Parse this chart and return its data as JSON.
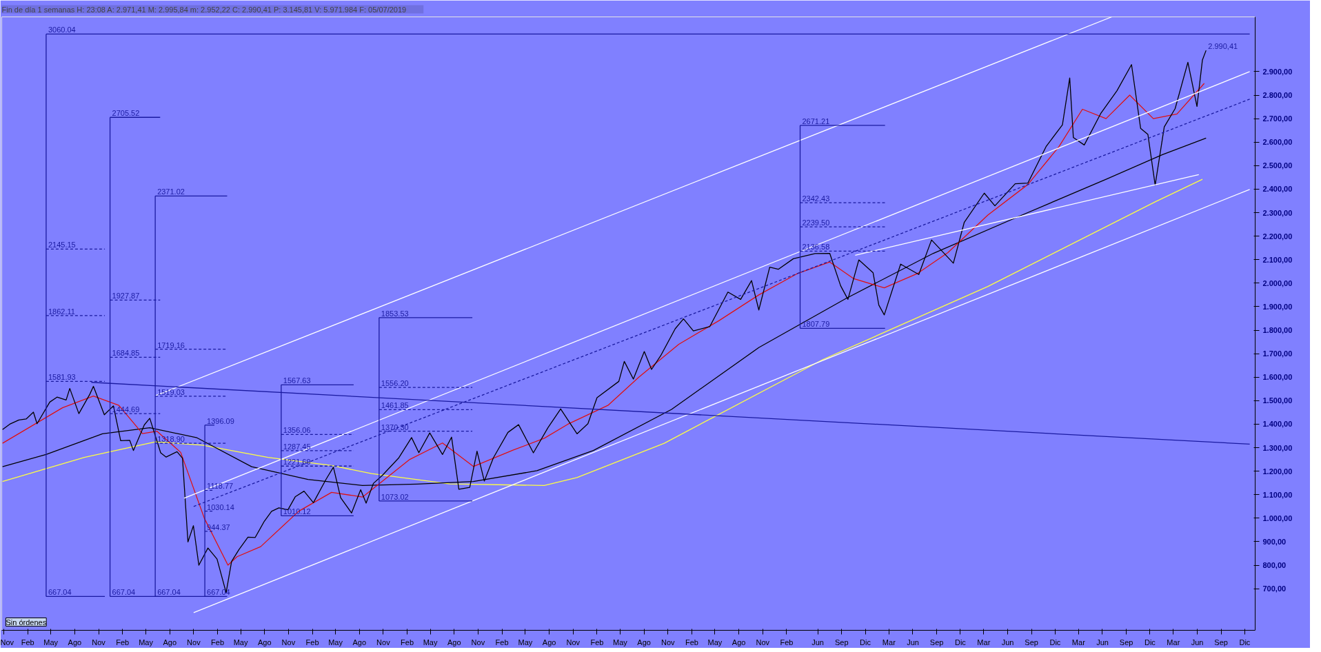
{
  "chart_data": {
    "type": "line",
    "title": "Fin de día 1 semanas  H: 23:08  A: 2.971,41  M: 2.995,84  m: 2.952,22  C: 2.990,41  P: 3.145,81  V: 5.971.984  F: 05/07/2019",
    "xlim": [
      "2006-10-24",
      "2020-01-10"
    ],
    "ylim": [
      523,
      3133
    ],
    "xticks": [
      {
        "value": "2006-11-01",
        "label": "Nov"
      },
      {
        "value": "2007-02-01",
        "label": "Feb"
      },
      {
        "value": "2007-05-01",
        "label": "May"
      },
      {
        "value": "2007-08-01",
        "label": "Ago"
      },
      {
        "value": "2007-11-01",
        "label": "Nov"
      },
      {
        "value": "2008-02-01",
        "label": "Feb"
      },
      {
        "value": "2008-05-01",
        "label": "May"
      },
      {
        "value": "2008-08-01",
        "label": "Ago"
      },
      {
        "value": "2008-11-01",
        "label": "Nov"
      },
      {
        "value": "2009-02-01",
        "label": "Feb"
      },
      {
        "value": "2009-05-01",
        "label": "May"
      },
      {
        "value": "2009-08-01",
        "label": "Ago"
      },
      {
        "value": "2009-11-01",
        "label": "Nov"
      },
      {
        "value": "2010-02-01",
        "label": "Feb"
      },
      {
        "value": "2010-05-01",
        "label": "May"
      },
      {
        "value": "2010-08-01",
        "label": "Ago"
      },
      {
        "value": "2010-11-01",
        "label": "Nov"
      },
      {
        "value": "2011-02-01",
        "label": "Feb"
      },
      {
        "value": "2011-05-01",
        "label": "May"
      },
      {
        "value": "2011-08-01",
        "label": "Ago"
      },
      {
        "value": "2011-11-01",
        "label": "Nov"
      },
      {
        "value": "2012-02-01",
        "label": "Feb"
      },
      {
        "value": "2012-05-01",
        "label": "May"
      },
      {
        "value": "2012-08-01",
        "label": "Ago"
      },
      {
        "value": "2012-11-01",
        "label": "Nov"
      },
      {
        "value": "2013-02-01",
        "label": "Feb"
      },
      {
        "value": "2013-05-01",
        "label": "May"
      },
      {
        "value": "2013-08-01",
        "label": "Ago"
      },
      {
        "value": "2013-11-01",
        "label": "Nov"
      },
      {
        "value": "2014-02-01",
        "label": "Feb"
      },
      {
        "value": "2014-05-01",
        "label": "May"
      },
      {
        "value": "2014-08-01",
        "label": "Ago"
      },
      {
        "value": "2014-11-01",
        "label": "Nov"
      },
      {
        "value": "2015-02-01",
        "label": "Feb"
      },
      {
        "value": "2015-06-01",
        "label": "Jun"
      },
      {
        "value": "2015-09-01",
        "label": "Sep"
      },
      {
        "value": "2015-12-01",
        "label": "Dic"
      },
      {
        "value": "2016-03-01",
        "label": "Mar"
      },
      {
        "value": "2016-06-01",
        "label": "Jun"
      },
      {
        "value": "2016-09-01",
        "label": "Sep"
      },
      {
        "value": "2016-12-01",
        "label": "Dic"
      },
      {
        "value": "2017-03-01",
        "label": "Mar"
      },
      {
        "value": "2017-06-01",
        "label": "Jun"
      },
      {
        "value": "2017-09-01",
        "label": "Sep"
      },
      {
        "value": "2017-12-01",
        "label": "Dic"
      },
      {
        "value": "2018-03-01",
        "label": "Mar"
      },
      {
        "value": "2018-06-01",
        "label": "Jun"
      },
      {
        "value": "2018-09-01",
        "label": "Sep"
      },
      {
        "value": "2018-12-01",
        "label": "Dic"
      },
      {
        "value": "2019-03-01",
        "label": "Mar"
      },
      {
        "value": "2019-06-01",
        "label": "Jun"
      },
      {
        "value": "2019-09-01",
        "label": "Sep"
      },
      {
        "value": "2019-12-01",
        "label": "Dic"
      }
    ],
    "yticks": [
      {
        "value": 700,
        "label": "700,00"
      },
      {
        "value": 800,
        "label": "800,00"
      },
      {
        "value": 900,
        "label": "900,00"
      },
      {
        "value": 1000,
        "label": "1.000,00"
      },
      {
        "value": 1100,
        "label": "1.100,00"
      },
      {
        "value": 1200,
        "label": "1.200,00"
      },
      {
        "value": 1300,
        "label": "1.300,00"
      },
      {
        "value": 1400,
        "label": "1.400,00"
      },
      {
        "value": 1500,
        "label": "1.500,00"
      },
      {
        "value": 1600,
        "label": "1.600,00"
      },
      {
        "value": 1700,
        "label": "1.700,00"
      },
      {
        "value": 1800,
        "label": "1.800,00"
      },
      {
        "value": 1900,
        "label": "1.900,00"
      },
      {
        "value": 2000,
        "label": "2.000,00"
      },
      {
        "value": 2100,
        "label": "2.100,00"
      },
      {
        "value": 2200,
        "label": "2.200,00"
      },
      {
        "value": 2300,
        "label": "2.300,00"
      },
      {
        "value": 2400,
        "label": "2.400,00"
      },
      {
        "value": 2500,
        "label": "2.500,00"
      },
      {
        "value": 2600,
        "label": "2.600,00"
      },
      {
        "value": 2700,
        "label": "2.700,00"
      },
      {
        "value": 2800,
        "label": "2.800,00"
      },
      {
        "value": 2900,
        "label": "2.900,00"
      }
    ],
    "grid": false,
    "marker": "none",
    "series": [
      {
        "color": "#ffff40",
        "x": [
          "2006-10-27",
          "2007-09-07",
          "2008-06-06",
          "2008-12-05",
          "2009-08-14",
          "2010-04-16",
          "2010-09-17",
          "2011-07-15",
          "2012-07-13",
          "2012-11-16",
          "2013-10-18",
          "2015-06-19",
          "2017-03-17",
          "2018-12-21",
          "2019-06-21"
        ],
        "values": [
          1156,
          1259,
          1325,
          1311,
          1259,
          1224,
          1190,
          1146,
          1139,
          1173,
          1319,
          1674,
          1986,
          2346,
          2442
        ]
      },
      {
        "color": "#000000",
        "x": [
          "2006-10-27",
          "2007-04-13",
          "2007-11-16",
          "2008-05-16",
          "2008-11-14",
          "2009-06-12",
          "2010-01-15",
          "2010-08-13",
          "2011-03-11",
          "2011-10-14",
          "2012-06-15",
          "2013-01-18",
          "2013-11-15",
          "2014-10-17",
          "2015-09-18",
          "2016-08-19",
          "2017-07-14",
          "2018-06-15",
          "2019-01-18",
          "2019-07-05"
        ],
        "values": [
          1219,
          1271,
          1359,
          1385,
          1342,
          1219,
          1165,
          1139,
          1145,
          1156,
          1202,
          1288,
          1463,
          1726,
          1935,
          2127,
          2284,
          2442,
          2547,
          2617
        ]
      },
      {
        "color": "#e01010",
        "x": [
          "2006-10-27",
          "2007-06-15",
          "2007-10-12",
          "2008-01-18",
          "2008-04-18",
          "2008-06-13",
          "2008-09-12",
          "2008-12-12",
          "2009-03-13",
          "2009-04-17",
          "2009-07-17",
          "2009-12-11",
          "2010-04-16",
          "2010-08-13",
          "2011-02-11",
          "2011-06-17",
          "2011-10-14",
          "2012-03-16",
          "2012-07-13",
          "2012-10-12",
          "2013-03-15",
          "2013-07-12",
          "2013-12-13",
          "2014-05-16",
          "2014-10-17",
          "2015-03-13",
          "2015-07-17",
          "2015-10-16",
          "2016-02-12",
          "2016-06-17",
          "2016-10-14",
          "2017-03-17",
          "2017-08-18",
          "2017-12-15",
          "2018-03-16",
          "2018-06-15",
          "2018-09-14",
          "2018-12-14",
          "2019-03-15",
          "2019-06-28"
        ],
        "values": [
          1319,
          1470,
          1520,
          1480,
          1360,
          1370,
          1280,
          1000,
          800,
          836,
          879,
          1030,
          1110,
          1090,
          1250,
          1320,
          1220,
          1290,
          1340,
          1400,
          1480,
          1600,
          1740,
          1840,
          1950,
          2040,
          2090,
          2020,
          1980,
          2040,
          2130,
          2290,
          2420,
          2580,
          2740,
          2700,
          2800,
          2700,
          2720,
          2850
        ]
      },
      {
        "color": "#000000",
        "x": [
          "2006-10-27",
          "2006-11-24",
          "2006-12-29",
          "2007-01-26",
          "2007-02-23",
          "2007-03-09",
          "2007-04-27",
          "2007-05-25",
          "2007-06-29",
          "2007-07-13",
          "2007-08-17",
          "2007-09-28",
          "2007-10-12",
          "2007-11-23",
          "2007-12-28",
          "2008-01-25",
          "2008-02-29",
          "2008-03-14",
          "2008-04-25",
          "2008-05-16",
          "2008-06-27",
          "2008-07-18",
          "2008-08-29",
          "2008-09-19",
          "2008-10-10",
          "2008-10-31",
          "2008-11-21",
          "2008-12-26",
          "2009-01-30",
          "2009-03-06",
          "2009-03-27",
          "2009-04-24",
          "2009-05-29",
          "2009-06-26",
          "2009-07-31",
          "2009-08-28",
          "2009-09-25",
          "2009-10-30",
          "2009-11-27",
          "2009-12-31",
          "2010-02-05",
          "2010-03-26",
          "2010-04-23",
          "2010-05-21",
          "2010-07-02",
          "2010-08-06",
          "2010-08-27",
          "2010-09-24",
          "2010-10-29",
          "2010-12-31",
          "2011-02-18",
          "2011-03-18",
          "2011-04-29",
          "2011-06-17",
          "2011-07-22",
          "2011-08-19",
          "2011-09-30",
          "2011-10-28",
          "2011-11-25",
          "2011-12-30",
          "2012-02-24",
          "2012-04-05",
          "2012-06-01",
          "2012-07-27",
          "2012-09-14",
          "2012-11-16",
          "2012-12-28",
          "2013-02-01",
          "2013-04-26",
          "2013-05-17",
          "2013-06-21",
          "2013-08-02",
          "2013-08-30",
          "2013-10-04",
          "2013-11-29",
          "2013-12-31",
          "2014-02-07",
          "2014-04-11",
          "2014-06-20",
          "2014-08-08",
          "2014-09-19",
          "2014-10-17",
          "2014-11-28",
          "2014-12-31",
          "2015-02-27",
          "2015-05-22",
          "2015-07-17",
          "2015-08-28",
          "2015-09-25",
          "2015-11-06",
          "2015-12-31",
          "2016-01-22",
          "2016-02-12",
          "2016-04-15",
          "2016-06-24",
          "2016-08-12",
          "2016-11-04",
          "2016-12-16",
          "2017-03-03",
          "2017-04-13",
          "2017-06-30",
          "2017-08-18",
          "2017-10-27",
          "2017-12-29",
          "2018-01-26",
          "2018-02-09",
          "2018-03-23",
          "2018-05-25",
          "2018-07-27",
          "2018-09-21",
          "2018-10-26",
          "2018-11-23",
          "2018-12-21",
          "2019-01-25",
          "2019-03-08",
          "2019-04-26",
          "2019-05-31",
          "2019-06-21",
          "2019-07-05"
        ],
        "values": [
          1377,
          1400,
          1418,
          1422,
          1451,
          1402,
          1494,
          1515,
          1503,
          1552,
          1445,
          1527,
          1561,
          1440,
          1478,
          1330,
          1331,
          1288,
          1397,
          1425,
          1278,
          1260,
          1283,
          1255,
          899,
          968,
          800,
          873,
          826,
          683,
          816,
          866,
          919,
          918,
          987,
          1029,
          1044,
          1036,
          1091,
          1115,
          1066,
          1166,
          1217,
          1087,
          1022,
          1121,
          1064,
          1148,
          1183,
          1257,
          1343,
          1279,
          1363,
          1271,
          1345,
          1123,
          1131,
          1285,
          1158,
          1257,
          1365,
          1398,
          1278,
          1385,
          1465,
          1359,
          1402,
          1513,
          1582,
          1667,
          1592,
          1709,
          1633,
          1691,
          1806,
          1848,
          1797,
          1815,
          1962,
          1931,
          2011,
          1886,
          2068,
          2059,
          2104,
          2126,
          2127,
          1989,
          1931,
          2099,
          2044,
          1907,
          1865,
          2081,
          2037,
          2184,
          2085,
          2259,
          2383,
          2329,
          2423,
          2426,
          2581,
          2674,
          2873,
          2620,
          2588,
          2721,
          2819,
          2930,
          2659,
          2633,
          2417,
          2665,
          2743,
          2940,
          2752,
          2950,
          2990.41
        ]
      },
      {
        "color": "#ffffff",
        "x": [
          "2008-06-07",
          "2018-07-07"
        ],
        "values": [
          1521,
          3133
        ]
      },
      {
        "color": "#ffffff",
        "x": [
          "2008-09-25",
          "2019-12-20"
        ],
        "values": [
          1085,
          2900
        ]
      },
      {
        "color": "#ffffff",
        "x": [
          "2008-11-01",
          "2019-12-20"
        ],
        "values": [
          598,
          2399
        ]
      },
      {
        "color": "#ffffff",
        "x": [
          "2015-10-23",
          "2019-06-07"
        ],
        "values": [
          2119,
          2462
        ]
      },
      {
        "color": "#1a1aa0",
        "line_style": "dashed",
        "x": [
          "2008-11-01",
          "2019-12-20"
        ],
        "values": [
          1050,
          2783
        ]
      },
      {
        "color": "#1a1aa0",
        "x": [
          "2007-10-04",
          "2019-12-20"
        ],
        "values": [
          1578,
          1315
        ]
      },
      {
        "color": "#1a1aa0",
        "x": [
          "2007-04-13",
          "2007-04-13"
        ],
        "values": [
          667.04,
          3060.04
        ]
      },
      {
        "color": "#1a1aa0",
        "x": [
          "2007-04-13",
          "2019-12-20"
        ],
        "values": [
          3060.04,
          3060.04
        ]
      },
      {
        "color": "#1a1aa0",
        "line_style": "dashed",
        "x": [
          "2007-04-13",
          "2007-11-25"
        ],
        "values": [
          2145.15,
          2145.15
        ]
      },
      {
        "color": "#1a1aa0",
        "line_style": "dashed",
        "x": [
          "2007-04-13",
          "2007-11-25"
        ],
        "values": [
          1862.11,
          1862.11
        ]
      },
      {
        "color": "#1a1aa0",
        "line_style": "dashed",
        "x": [
          "2007-04-13",
          "2007-11-25"
        ],
        "values": [
          1581.93,
          1581.93
        ]
      },
      {
        "color": "#1a1aa0",
        "x": [
          "2007-04-13",
          "2007-11-25"
        ],
        "values": [
          667.04,
          667.04
        ]
      },
      {
        "color": "#1a1aa0",
        "x": [
          "2007-12-15",
          "2007-12-15"
        ],
        "values": [
          667.04,
          2705.52
        ]
      },
      {
        "color": "#1a1aa0",
        "x": [
          "2007-12-15",
          "2008-06-25"
        ],
        "values": [
          2705.52,
          2705.52
        ]
      },
      {
        "color": "#1a1aa0",
        "line_style": "dashed",
        "x": [
          "2007-12-15",
          "2008-06-25"
        ],
        "values": [
          1927.87,
          1927.87
        ]
      },
      {
        "color": "#1a1aa0",
        "line_style": "dashed",
        "x": [
          "2007-12-15",
          "2008-06-25"
        ],
        "values": [
          1684.85,
          1684.85
        ]
      },
      {
        "color": "#1a1aa0",
        "line_style": "dashed",
        "x": [
          "2007-12-15",
          "2008-06-25"
        ],
        "values": [
          1444.69,
          1444.69
        ]
      },
      {
        "color": "#1a1aa0",
        "x": [
          "2007-12-15",
          "2008-06-25"
        ],
        "values": [
          667.04,
          667.04
        ]
      },
      {
        "color": "#1a1aa0",
        "x": [
          "2008-06-06",
          "2008-06-06"
        ],
        "values": [
          667.04,
          2371.02
        ]
      },
      {
        "color": "#1a1aa0",
        "x": [
          "2008-06-06",
          "2009-03-10"
        ],
        "values": [
          2371.02,
          2371.02
        ]
      },
      {
        "color": "#1a1aa0",
        "line_style": "dashed",
        "x": [
          "2008-06-06",
          "2009-03-10"
        ],
        "values": [
          1719.16,
          1719.16
        ]
      },
      {
        "color": "#1a1aa0",
        "line_style": "dashed",
        "x": [
          "2008-06-06",
          "2009-03-10"
        ],
        "values": [
          1519.03,
          1519.03
        ]
      },
      {
        "color": "#1a1aa0",
        "line_style": "dashed",
        "x": [
          "2008-06-06",
          "2009-03-10"
        ],
        "values": [
          1318.9,
          1318.9
        ]
      },
      {
        "color": "#1a1aa0",
        "x": [
          "2008-06-06",
          "2009-03-10"
        ],
        "values": [
          667.04,
          667.04
        ]
      },
      {
        "color": "#1a1aa0",
        "x": [
          "2008-12-14",
          "2008-12-14"
        ],
        "values": [
          667.04,
          1396.09
        ]
      },
      {
        "color": "#1a1aa0",
        "x": [
          "2008-12-14",
          "2009-01-20"
        ],
        "values": [
          1396.09,
          1396.09
        ]
      },
      {
        "color": "#1a1aa0",
        "line_style": "dashed",
        "x": [
          "2008-12-14",
          "2009-01-20"
        ],
        "values": [
          1118.77,
          1118.77
        ]
      },
      {
        "color": "#1a1aa0",
        "line_style": "dashed",
        "x": [
          "2008-12-14",
          "2009-01-20"
        ],
        "values": [
          1030.14,
          1030.14
        ]
      },
      {
        "color": "#1a1aa0",
        "line_style": "dashed",
        "x": [
          "2008-12-14",
          "2009-01-20"
        ],
        "values": [
          944.37,
          944.37
        ]
      },
      {
        "color": "#1a1aa0",
        "x": [
          "2008-12-14",
          "2009-01-20"
        ],
        "values": [
          667.04,
          667.04
        ]
      },
      {
        "color": "#1a1aa0",
        "x": [
          "2009-10-04",
          "2009-10-04"
        ],
        "values": [
          1010.12,
          1567.63
        ]
      },
      {
        "color": "#1a1aa0",
        "x": [
          "2009-10-04",
          "2010-07-10"
        ],
        "values": [
          1567.63,
          1567.63
        ]
      },
      {
        "color": "#1a1aa0",
        "line_style": "dashed",
        "x": [
          "2009-10-04",
          "2010-07-10"
        ],
        "values": [
          1356.06,
          1356.06
        ]
      },
      {
        "color": "#1a1aa0",
        "line_style": "dashed",
        "x": [
          "2009-10-04",
          "2010-07-10"
        ],
        "values": [
          1287.45,
          1287.45
        ]
      },
      {
        "color": "#1a1aa0",
        "line_style": "dashed",
        "x": [
          "2009-10-04",
          "2010-07-10"
        ],
        "values": [
          1221.69,
          1221.69
        ]
      },
      {
        "color": "#1a1aa0",
        "x": [
          "2009-10-04",
          "2010-07-10"
        ],
        "values": [
          1010.12,
          1010.12
        ]
      },
      {
        "color": "#1a1aa0",
        "x": [
          "2010-10-16",
          "2010-10-16"
        ],
        "values": [
          1073.02,
          1853.53
        ]
      },
      {
        "color": "#1a1aa0",
        "x": [
          "2010-10-16",
          "2011-10-10"
        ],
        "values": [
          1853.53,
          1853.53
        ]
      },
      {
        "color": "#1a1aa0",
        "line_style": "dashed",
        "x": [
          "2010-10-16",
          "2011-10-10"
        ],
        "values": [
          1556.2,
          1556.2
        ]
      },
      {
        "color": "#1a1aa0",
        "line_style": "dashed",
        "x": [
          "2010-10-16",
          "2011-10-10"
        ],
        "values": [
          1461.85,
          1461.85
        ]
      },
      {
        "color": "#1a1aa0",
        "line_style": "dashed",
        "x": [
          "2010-10-16",
          "2011-10-10"
        ],
        "values": [
          1370.3,
          1370.3
        ]
      },
      {
        "color": "#1a1aa0",
        "x": [
          "2010-10-16",
          "2011-10-10"
        ],
        "values": [
          1073.02,
          1073.02
        ]
      },
      {
        "color": "#1a1aa0",
        "x": [
          "2015-03-25",
          "2015-03-25"
        ],
        "values": [
          1807.79,
          2671.21
        ]
      },
      {
        "color": "#1a1aa0",
        "x": [
          "2015-03-25",
          "2016-02-15"
        ],
        "values": [
          2671.21,
          2671.21
        ]
      },
      {
        "color": "#1a1aa0",
        "line_style": "dashed",
        "x": [
          "2015-03-25",
          "2016-02-15"
        ],
        "values": [
          2342.43,
          2342.43
        ]
      },
      {
        "color": "#1a1aa0",
        "line_style": "dashed",
        "x": [
          "2015-03-25",
          "2016-02-15"
        ],
        "values": [
          2239.5,
          2239.5
        ]
      },
      {
        "color": "#1a1aa0",
        "line_style": "dashed",
        "x": [
          "2015-03-25",
          "2016-02-15"
        ],
        "values": [
          2136.58,
          2136.58
        ]
      },
      {
        "color": "#1a1aa0",
        "x": [
          "2015-03-25",
          "2016-02-15"
        ],
        "values": [
          1807.79,
          1807.79
        ]
      }
    ],
    "annotations": [
      {
        "text": "3060.04",
        "x": "2007-04-13",
        "y": 3060.04
      },
      {
        "text": "2145.15",
        "x": "2007-04-13",
        "y": 2145.15
      },
      {
        "text": "1862.11",
        "x": "2007-04-13",
        "y": 1862.11
      },
      {
        "text": "1581.93",
        "x": "2007-04-13",
        "y": 1581.93
      },
      {
        "text": "667.04",
        "x": "2007-04-13",
        "y": 667.04
      },
      {
        "text": "2705.52",
        "x": "2007-12-15",
        "y": 2705.52
      },
      {
        "text": "1927.87",
        "x": "2007-12-15",
        "y": 1927.87
      },
      {
        "text": "1684.85",
        "x": "2007-12-15",
        "y": 1684.85
      },
      {
        "text": "1444.69",
        "x": "2007-12-15",
        "y": 1444.69
      },
      {
        "text": "667.04",
        "x": "2007-12-15",
        "y": 667.04
      },
      {
        "text": "2371.02",
        "x": "2008-06-06",
        "y": 2371.02
      },
      {
        "text": "1719.16",
        "x": "2008-06-06",
        "y": 1719.16
      },
      {
        "text": "1519.03",
        "x": "2008-06-06",
        "y": 1519.03
      },
      {
        "text": "1318.90",
        "x": "2008-06-06",
        "y": 1318.9
      },
      {
        "text": "667.04",
        "x": "2008-06-06",
        "y": 667.04
      },
      {
        "text": "1396.09",
        "x": "2008-12-14",
        "y": 1396.09
      },
      {
        "text": "1118.77",
        "x": "2008-12-14",
        "y": 1118.77
      },
      {
        "text": "1030.14",
        "x": "2008-12-14",
        "y": 1030.14
      },
      {
        "text": "944.37",
        "x": "2008-12-14",
        "y": 944.37
      },
      {
        "text": "667.04",
        "x": "2008-12-14",
        "y": 667.04
      },
      {
        "text": "1567.63",
        "x": "2009-10-04",
        "y": 1567.63
      },
      {
        "text": "1356.06",
        "x": "2009-10-04",
        "y": 1356.06
      },
      {
        "text": "1287.45",
        "x": "2009-10-04",
        "y": 1287.45
      },
      {
        "text": "1221.69",
        "x": "2009-10-04",
        "y": 1221.69
      },
      {
        "text": "1010.12",
        "x": "2009-10-04",
        "y": 1010.12
      },
      {
        "text": "1853.53",
        "x": "2010-10-16",
        "y": 1853.53
      },
      {
        "text": "1556.20",
        "x": "2010-10-16",
        "y": 1556.2
      },
      {
        "text": "1461.85",
        "x": "2010-10-16",
        "y": 1461.85
      },
      {
        "text": "1370.30",
        "x": "2010-10-16",
        "y": 1370.3
      },
      {
        "text": "1073.02",
        "x": "2010-10-16",
        "y": 1073.02
      },
      {
        "text": "2671.21",
        "x": "2015-03-25",
        "y": 2671.21
      },
      {
        "text": "2342.43",
        "x": "2015-03-25",
        "y": 2342.43
      },
      {
        "text": "2239.50",
        "x": "2015-03-25",
        "y": 2239.5
      },
      {
        "text": "2136.58",
        "x": "2015-03-25",
        "y": 2136.58
      },
      {
        "text": "1807.79",
        "x": "2015-03-25",
        "y": 1807.79
      },
      {
        "text": "2.990,41",
        "x": "2019-07-05",
        "y": 2990.41
      },
      "Sin órdenes"
    ]
  }
}
